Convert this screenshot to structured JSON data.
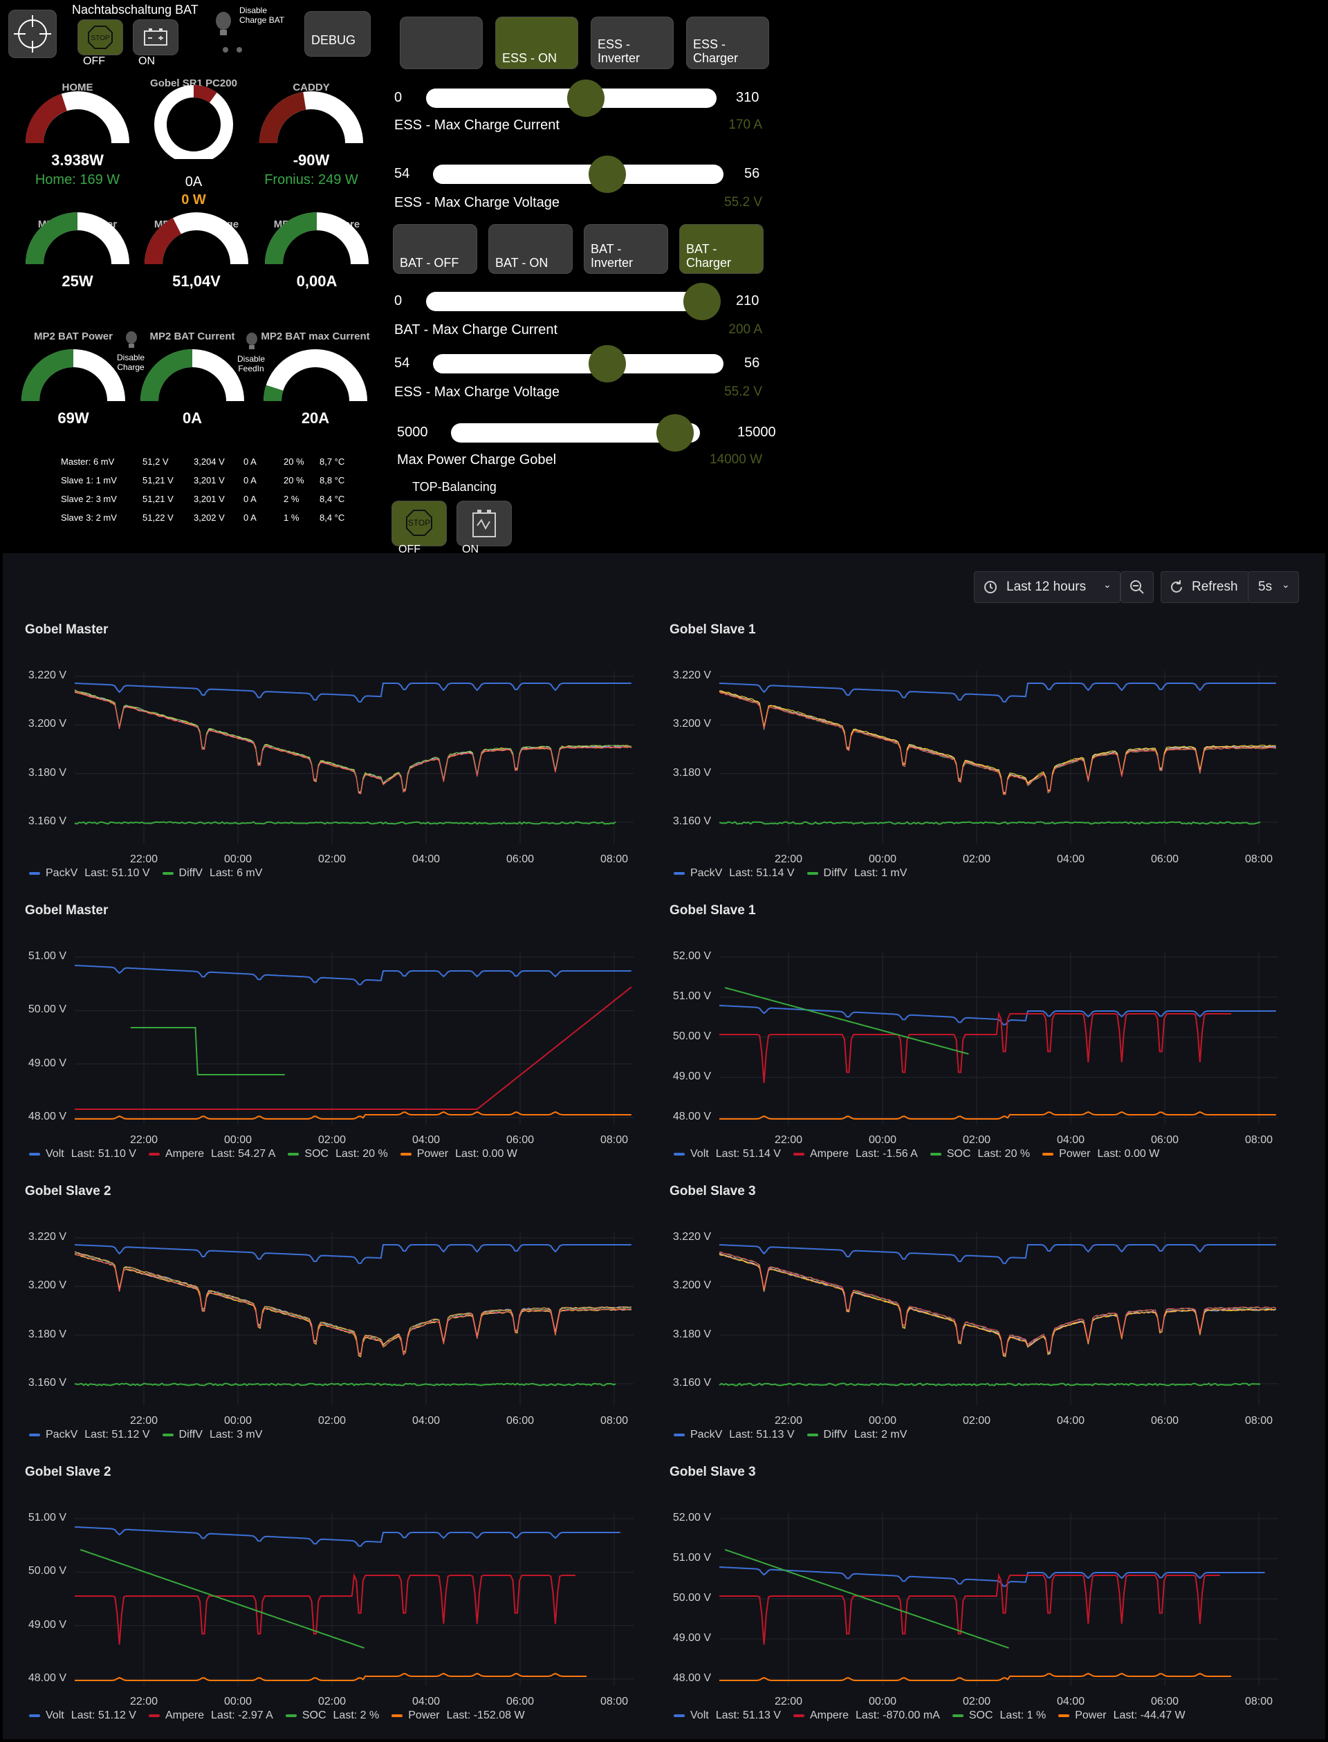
{
  "top": {
    "nacht_title": "Nachtabschaltung BAT",
    "off": "OFF",
    "on": "ON",
    "disable_charge_bat": "Disable Charge BAT",
    "debug": "DEBUG",
    "stop": "STOP"
  },
  "ess_buttons": [
    "",
    "ESS - ON",
    "ESS - Inverter",
    "ESS - Charger"
  ],
  "bat_buttons": [
    "BAT - OFF",
    "BAT - ON",
    "BAT - Inverter",
    "BAT - Charger"
  ],
  "gauges": {
    "home": {
      "title": "HOME",
      "value": "3.938W",
      "sub": "Home: 169 W",
      "fill": 0.4
    },
    "gobel": {
      "title": "Gobel SR1 PC200",
      "value": "10%",
      "sub1": "0A",
      "sub2": "0 W",
      "fill": 0.1
    },
    "caddy": {
      "title": "CADDY",
      "value": "-90W",
      "sub": "Fronius: 249 W",
      "fill": 0.45
    },
    "ess_power": {
      "title": "MP2 ESS Power",
      "value": "25W",
      "fill": 0.5
    },
    "ess_voltage": {
      "title": "MP2 ESS Voltage",
      "value": "51,04V",
      "fill": 0.35
    },
    "ess_ampere": {
      "title": "MP2 ESS Ampere",
      "value": "0,00A",
      "fill": 0.5
    },
    "bat_power": {
      "title": "MP2 BAT Power",
      "value": "69W",
      "fill": 0.5
    },
    "bat_current": {
      "title": "MP2 BAT Current",
      "value": "0A",
      "fill": 0.5
    },
    "bat_max": {
      "title": "MP2 BAT max Current",
      "value": "20A",
      "fill": 0.1
    },
    "disable_charge": "Disable Charge",
    "disable_feedin": "Disable FeedIn"
  },
  "bms_table": [
    [
      "Master: 6 mV",
      "51,2 V",
      "3,204 V",
      "0 A",
      "20 %",
      "8,7 °C"
    ],
    [
      "Slave 1: 1 mV",
      "51,21 V",
      "3,201 V",
      "0 A",
      "20 %",
      "8,8 °C"
    ],
    [
      "Slave 2: 3 mV",
      "51,21 V",
      "3,201 V",
      "0 A",
      "2 %",
      "8,4 °C"
    ],
    [
      "Slave 3: 2 mV",
      "51,22 V",
      "3,202 V",
      "0 A",
      "1 %",
      "8,4 °C"
    ]
  ],
  "sliders": [
    {
      "min": "0",
      "max": "310",
      "label": "ESS - Max Charge Current",
      "value": "170 A",
      "frac": 0.55
    },
    {
      "min": "54",
      "max": "56",
      "label": "ESS - Max Charge Voltage",
      "value": "55.2 V",
      "frac": 0.6
    },
    {
      "min": "0",
      "max": "210",
      "label": "BAT - Max Charge Current",
      "value": "200 A",
      "frac": 0.95
    },
    {
      "min": "54",
      "max": "56",
      "label": "ESS - Max Charge Voltage",
      "value": "55.2 V",
      "frac": 0.6
    },
    {
      "min": "5000",
      "max": "15000",
      "label": "Max Power Charge Gobel",
      "value": "14000 W",
      "frac": 0.9
    }
  ],
  "top_balancing": {
    "title": "TOP-Balancing",
    "off": "OFF",
    "on": "ON"
  },
  "dashboard": {
    "time_range": "Last 12 hours",
    "refresh": "Refresh",
    "interval": "5s"
  },
  "colors": {
    "blue": "#3d71d9",
    "green": "#37a93c",
    "red": "#c4162a",
    "orange": "#ff780a",
    "accent": "#4a5a1e"
  },
  "panels": [
    {
      "title": "Gobel Master",
      "kind": "cell",
      "yticks": [
        "3.220 V",
        "3.200 V",
        "3.180 V",
        "3.160 V"
      ],
      "xticks": [
        "22:00",
        "00:00",
        "02:00",
        "04:00",
        "06:00",
        "08:00"
      ],
      "legend": [
        {
          "name": "PackV",
          "last": "Last: 51.10 V",
          "color": "blue"
        },
        {
          "name": "DiffV",
          "last": "Last: 6 mV",
          "color": "green"
        }
      ]
    },
    {
      "title": "Gobel Slave 1",
      "kind": "cell",
      "yticks": [
        "3.220 V",
        "3.200 V",
        "3.180 V",
        "3.160 V"
      ],
      "xticks": [
        "22:00",
        "00:00",
        "02:00",
        "04:00",
        "06:00",
        "08:00"
      ],
      "legend": [
        {
          "name": "PackV",
          "last": "Last: 51.14 V",
          "color": "blue"
        },
        {
          "name": "DiffV",
          "last": "Last: 1 mV",
          "color": "green"
        }
      ]
    },
    {
      "title": "Gobel Master",
      "kind": "pack",
      "yticks": [
        "51.00 V",
        "50.00 V",
        "49.00 V",
        "48.00 V"
      ],
      "xticks": [
        "22:00",
        "00:00",
        "02:00",
        "04:00",
        "06:00",
        "08:00"
      ],
      "legend": [
        {
          "name": "Volt",
          "last": "Last: 51.10 V",
          "color": "blue"
        },
        {
          "name": "Ampere",
          "last": "Last: 54.27 A",
          "color": "red"
        },
        {
          "name": "SOC",
          "last": "Last: 20 %",
          "color": "green"
        },
        {
          "name": "Power",
          "last": "Last: 0.00 W",
          "color": "orange"
        }
      ]
    },
    {
      "title": "Gobel Slave 1",
      "kind": "pack",
      "yticks": [
        "52.00 V",
        "51.00 V",
        "50.00 V",
        "49.00 V",
        "48.00 V"
      ],
      "xticks": [
        "22:00",
        "00:00",
        "02:00",
        "04:00",
        "06:00",
        "08:00"
      ],
      "legend": [
        {
          "name": "Volt",
          "last": "Last: 51.14 V",
          "color": "blue"
        },
        {
          "name": "Ampere",
          "last": "Last: -1.56 A",
          "color": "red"
        },
        {
          "name": "SOC",
          "last": "Last: 20 %",
          "color": "green"
        },
        {
          "name": "Power",
          "last": "Last: 0.00 W",
          "color": "orange"
        }
      ]
    },
    {
      "title": "Gobel Slave 2",
      "kind": "cell",
      "yticks": [
        "3.220 V",
        "3.200 V",
        "3.180 V",
        "3.160 V"
      ],
      "xticks": [
        "22:00",
        "00:00",
        "02:00",
        "04:00",
        "06:00",
        "08:00"
      ],
      "legend": [
        {
          "name": "PackV",
          "last": "Last: 51.12 V",
          "color": "blue"
        },
        {
          "name": "DiffV",
          "last": "Last: 3 mV",
          "color": "green"
        }
      ]
    },
    {
      "title": "Gobel Slave 3",
      "kind": "cell",
      "yticks": [
        "3.220 V",
        "3.200 V",
        "3.180 V",
        "3.160 V"
      ],
      "xticks": [
        "22:00",
        "00:00",
        "02:00",
        "04:00",
        "06:00",
        "08:00"
      ],
      "legend": [
        {
          "name": "PackV",
          "last": "Last: 51.13 V",
          "color": "blue"
        },
        {
          "name": "DiffV",
          "last": "Last: 2 mV",
          "color": "green"
        }
      ]
    },
    {
      "title": "Gobel Slave 2",
      "kind": "pack",
      "yticks": [
        "51.00 V",
        "50.00 V",
        "49.00 V",
        "48.00 V"
      ],
      "xticks": [
        "22:00",
        "00:00",
        "02:00",
        "04:00",
        "06:00",
        "08:00"
      ],
      "legend": [
        {
          "name": "Volt",
          "last": "Last: 51.12 V",
          "color": "blue"
        },
        {
          "name": "Ampere",
          "last": "Last: -2.97 A",
          "color": "red"
        },
        {
          "name": "SOC",
          "last": "Last: 2 %",
          "color": "green"
        },
        {
          "name": "Power",
          "last": "Last: -152.08 W",
          "color": "orange"
        }
      ]
    },
    {
      "title": "Gobel Slave 3",
      "kind": "pack",
      "yticks": [
        "52.00 V",
        "51.00 V",
        "50.00 V",
        "49.00 V",
        "48.00 V"
      ],
      "xticks": [
        "22:00",
        "00:00",
        "02:00",
        "04:00",
        "06:00",
        "08:00"
      ],
      "legend": [
        {
          "name": "Volt",
          "last": "Last: 51.13 V",
          "color": "blue"
        },
        {
          "name": "Ampere",
          "last": "Last: -870.00 mA",
          "color": "red"
        },
        {
          "name": "SOC",
          "last": "Last: 1 %",
          "color": "green"
        },
        {
          "name": "Power",
          "last": "Last: -44.47 W",
          "color": "orange"
        }
      ]
    }
  ]
}
